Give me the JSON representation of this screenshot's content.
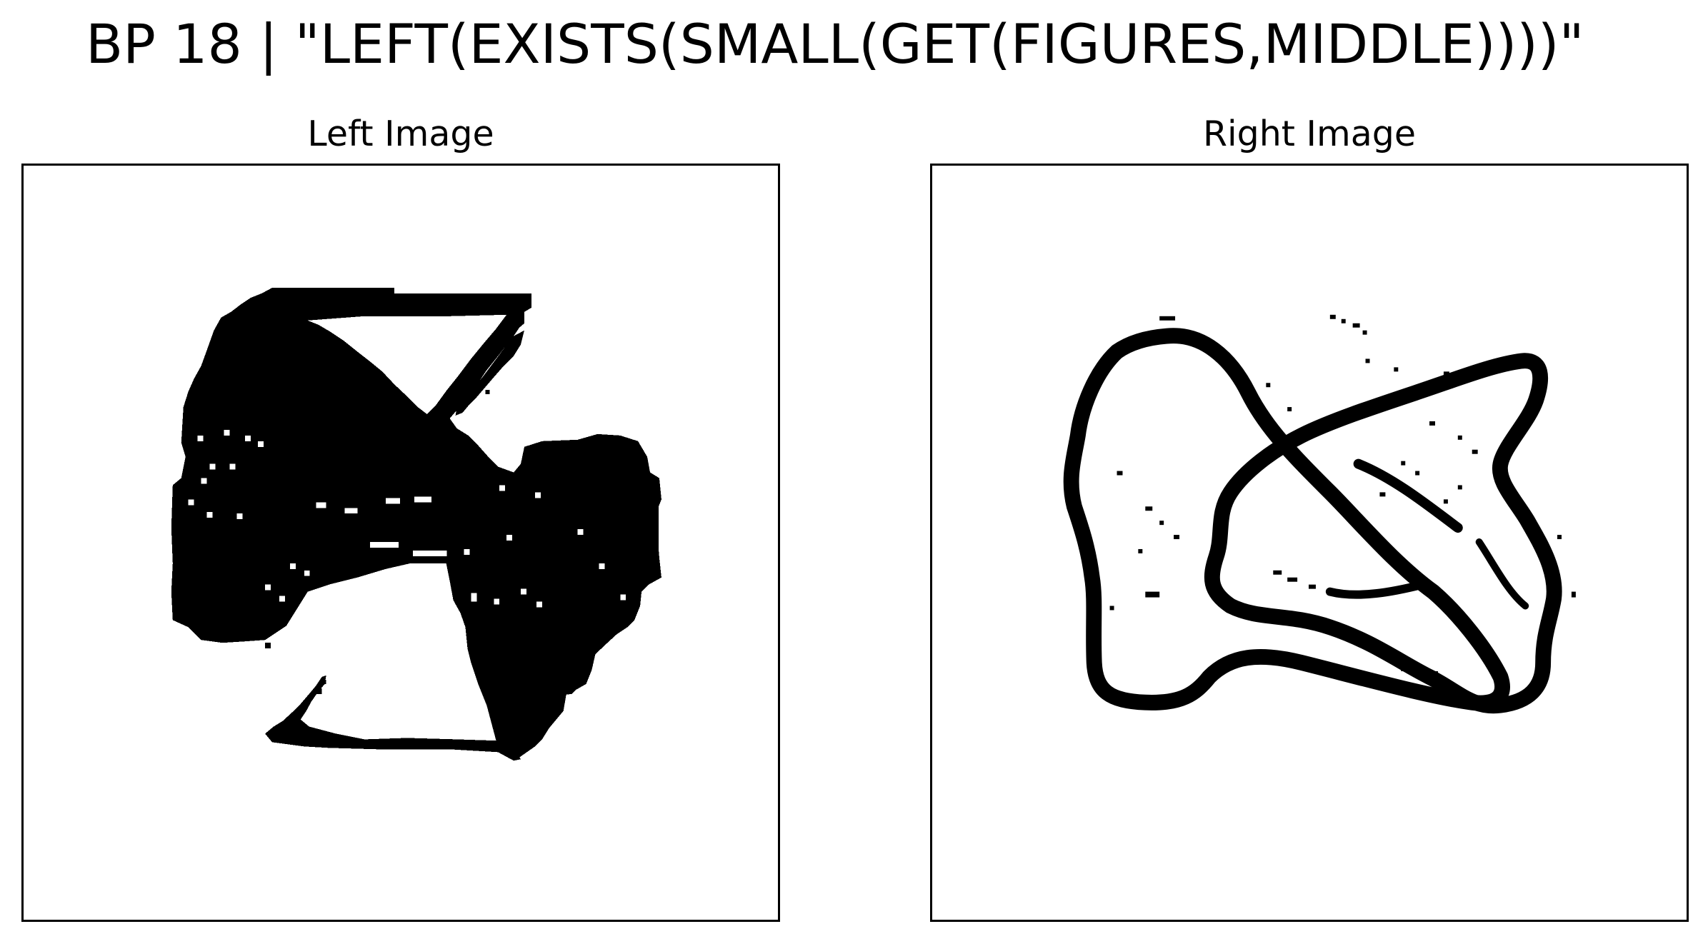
{
  "title": "BP 18 | \"LEFT(EXISTS(SMALL(GET(FIGURES,MIDDLE))))\"",
  "panels": {
    "left": {
      "title": "Left Image"
    },
    "right": {
      "title": "Right Image"
    }
  },
  "colors": {
    "ink": "#000000",
    "paper": "#ffffff"
  }
}
